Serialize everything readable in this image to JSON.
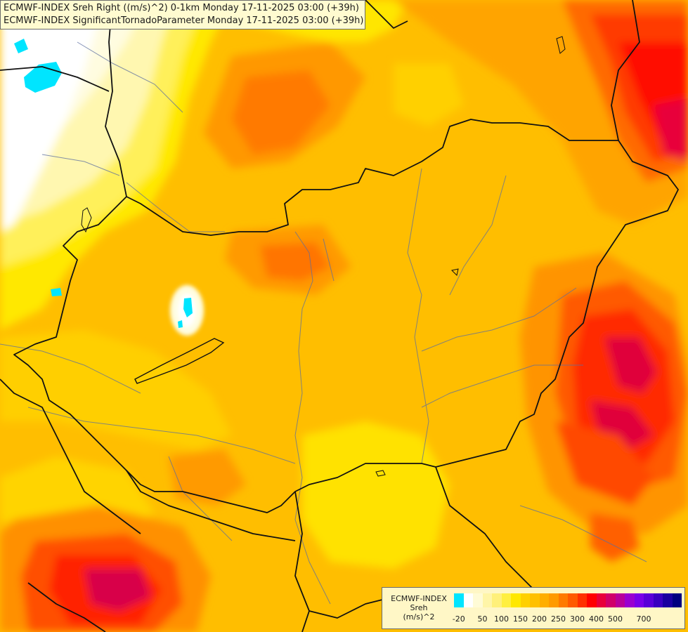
{
  "title": {
    "line1": "ECMWF-INDEX Sreh Right ((m/s)^2) 0-1km Monday 17-11-2025 03:00 (+39h)",
    "line2": "ECMWF-INDEX SignificantTornadoParameter Monday 17-11-2025 03:00 (+39h)"
  },
  "legend": {
    "model": "ECMWF-INDEX",
    "param": "Sreh",
    "unit": "(m/s)^2",
    "colors": [
      "#00e5ff",
      "#ffffff",
      "#fffbd6",
      "#fff5a8",
      "#fff07a",
      "#ffef40",
      "#ffe800",
      "#ffd000",
      "#ffc000",
      "#ffae00",
      "#ff9a00",
      "#ff7a00",
      "#ff5a00",
      "#ff3000",
      "#ff0000",
      "#e8003a",
      "#d0006a",
      "#b8009a",
      "#9a00d0",
      "#7a00e8",
      "#5a00d8",
      "#3a00c0",
      "#1a00a0",
      "#000080"
    ],
    "tick_labels": [
      "-20",
      "50",
      "100",
      "150",
      "200",
      "250",
      "300",
      "400",
      "500",
      "700"
    ],
    "tick_index": [
      0.5,
      3,
      5,
      7,
      9,
      11,
      13,
      15,
      17,
      20
    ]
  },
  "map": {
    "markers": [
      {
        "name": "cyan-patch-northwest",
        "color": "#00e5ff"
      },
      {
        "name": "cyan-patch-balaton",
        "color": "#00e5ff"
      },
      {
        "name": "cyan-patch-west",
        "color": "#00e5ff"
      }
    ]
  }
}
